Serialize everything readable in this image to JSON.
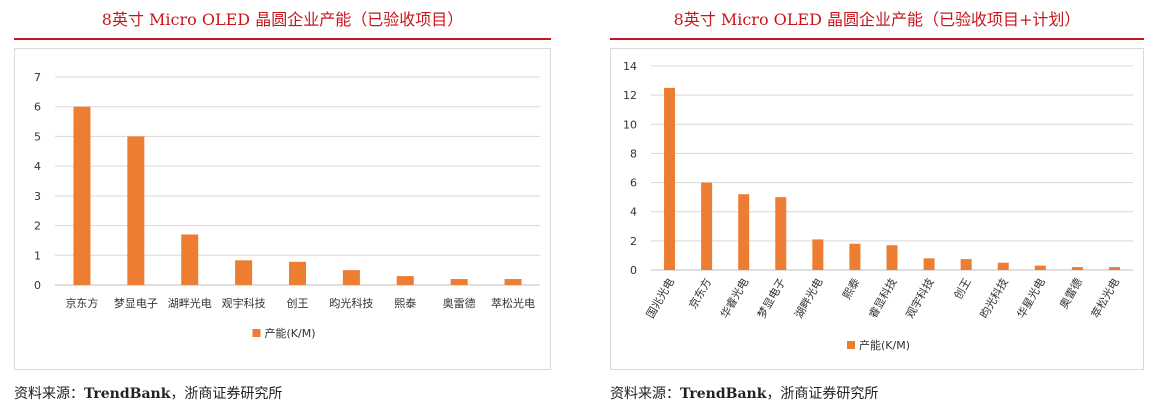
{
  "charts": [
    {
      "heading": "8英寸 Micro OLED 晶圆企业产能（已验收项目）",
      "source_prefix": "资料来源：",
      "source_bold": "TrendBank",
      "source_suffix": "，浙商证券研究所",
      "chart_data": {
        "type": "bar",
        "categories": [
          "京东方",
          "梦显电子",
          "湖畔光电",
          "观宇科技",
          "创王",
          "昀光科技",
          "熙泰",
          "奥雷德",
          "萃松光电"
        ],
        "series": [
          {
            "name": "产能(K/M)",
            "values": [
              6,
              5,
              1.7,
              0.83,
              0.78,
              0.5,
              0.3,
              0.2,
              0.2
            ]
          }
        ],
        "ylim": [
          0,
          7
        ],
        "yticks": [
          0,
          1,
          2,
          3,
          4,
          5,
          6,
          7
        ],
        "legend": "bottom",
        "color": "#ed7d31",
        "rotate_labels": false
      }
    },
    {
      "heading": "8英寸 Micro OLED 晶圆企业产能（已验收项目+计划）",
      "source_prefix": "资料来源：",
      "source_bold": "TrendBank",
      "source_suffix": "，浙商证券研究所",
      "chart_data": {
        "type": "bar",
        "categories": [
          "国兆光电",
          "京东方",
          "华睿光电",
          "梦显电子",
          "湖畔光电",
          "熙泰",
          "睿显科技",
          "观宇科技",
          "创王",
          "昀光科技",
          "华星光电",
          "奥雷德",
          "萃松光电"
        ],
        "series": [
          {
            "name": "产能(K/M)",
            "values": [
              12.5,
              6,
              5.2,
              5,
              2.1,
              1.8,
              1.7,
              0.8,
              0.75,
              0.5,
              0.3,
              0.2,
              0.2
            ]
          }
        ],
        "ylim": [
          0,
          14
        ],
        "yticks": [
          0,
          2,
          4,
          6,
          8,
          10,
          12,
          14
        ],
        "legend": "bottom",
        "color": "#ed7d31",
        "rotate_labels": true
      }
    }
  ]
}
